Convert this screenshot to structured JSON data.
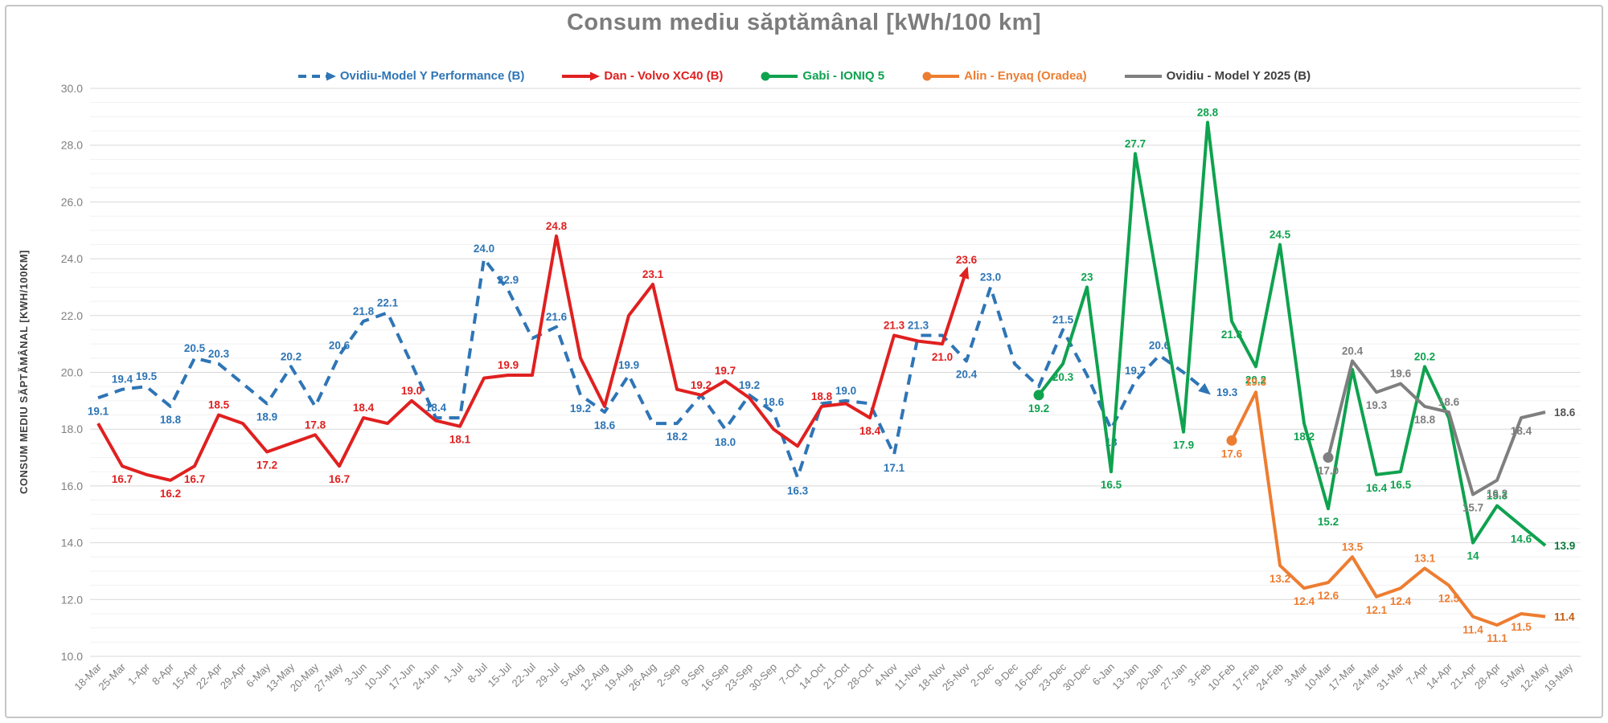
{
  "frame": {
    "border_color": "#C6C6C6",
    "background": "#FFFFFF"
  },
  "chart_data": {
    "type": "line",
    "title": "Consum mediu săptămânal [kWh/100 km]",
    "legend_position": "top",
    "grid": {
      "major": true,
      "minor": true
    },
    "colors": {
      "title": "#7C7C7C",
      "grid_major": "#D8D8D8",
      "grid_minor": "#F1F1F1",
      "tick_label": "#7F7F7F",
      "axis_title": "#3F3F3F"
    },
    "y_axis": {
      "title": "CONSUM MEDIU SĂPTĂMÂNAL [KWH/100KM]",
      "min": 10,
      "max": 30,
      "major_step": 2,
      "minor_step": 0.5,
      "tick_labels": [
        "10.0",
        "12.0",
        "14.0",
        "16.0",
        "18.0",
        "20.0",
        "22.0",
        "24.0",
        "26.0",
        "28.0",
        "30.0"
      ]
    },
    "x_axis": {
      "categories": [
        "18-Mar",
        "25-Mar",
        "1-Apr",
        "8-Apr",
        "15-Apr",
        "22-Apr",
        "29-Apr",
        "6-May",
        "13-May",
        "20-May",
        "27-May",
        "3-Jun",
        "10-Jun",
        "17-Jun",
        "24-Jun",
        "1-Jul",
        "8-Jul",
        "15-Jul",
        "22-Jul",
        "29-Jul",
        "5-Aug",
        "12-Aug",
        "19-Aug",
        "26-Aug",
        "2-Sep",
        "9-Sep",
        "16-Sep",
        "23-Sep",
        "30-Sep",
        "7-Oct",
        "14-Oct",
        "21-Oct",
        "28-Oct",
        "4-Nov",
        "11-Nov",
        "18-Nov",
        "25-Nov",
        "2-Dec",
        "9-Dec",
        "16-Dec",
        "23-Dec",
        "30-Dec",
        "6-Jan",
        "13-Jan",
        "20-Jan",
        "27-Jan",
        "3-Feb",
        "10-Feb",
        "17-Feb",
        "24-Feb",
        "3-Mar",
        "10-Mar",
        "17-Mar",
        "24-Mar",
        "31-Mar",
        "7-Apr",
        "14-Apr",
        "21-Apr",
        "28-Apr",
        "5-May",
        "12-May",
        "19-May"
      ]
    },
    "series": [
      {
        "name": "Ovidiu-Model Y Performance (B)",
        "color": "#2E75B6",
        "line_style": "dashed",
        "start_index": 0,
        "end_marker": "arrow",
        "legend_icon": "dashed-line-arrow-icon",
        "values": [
          19.1,
          19.4,
          19.5,
          18.8,
          20.5,
          20.3,
          19.6,
          18.9,
          20.2,
          18.8,
          20.6,
          21.8,
          22.1,
          20.3,
          18.4,
          18.4,
          24.0,
          22.9,
          21.2,
          21.6,
          19.2,
          18.6,
          19.9,
          18.2,
          18.2,
          19.2,
          18.0,
          19.2,
          18.6,
          16.3,
          18.9,
          19.0,
          18.9,
          17.1,
          21.3,
          21.3,
          20.4,
          23.0,
          20.3,
          19.5,
          21.5,
          19.9,
          18.0,
          19.7,
          20.6,
          20.0,
          19.3
        ],
        "labels": [
          "19.1",
          "19.4",
          "19.5",
          "18.8",
          "20.5",
          "20.3",
          null,
          "18.9",
          "20.2",
          null,
          "20.6",
          "21.8",
          "22.1",
          null,
          "18.4",
          null,
          "24.0",
          "22.9",
          null,
          "21.6",
          "19.2",
          "18.6",
          "19.9",
          null,
          "18.2",
          null,
          "18.0",
          "19.2",
          "18.6",
          "16.3",
          null,
          "19.0",
          null,
          "17.1",
          "21.3",
          null,
          "20.4",
          "23.0",
          null,
          null,
          "21.5",
          null,
          "18",
          "19.7",
          "20.6",
          null,
          "19.3"
        ],
        "label_overrides": {
          "14": "above",
          "46": "right"
        }
      },
      {
        "name": "Dan - Volvo XC40 (B)",
        "color": "#E02020",
        "line_style": "solid",
        "start_index": 0,
        "end_marker": "arrow",
        "legend_icon": "line-arrow-icon",
        "values": [
          18.2,
          16.7,
          16.4,
          16.2,
          16.7,
          18.5,
          18.2,
          17.2,
          17.5,
          17.8,
          16.7,
          18.4,
          18.2,
          19.0,
          18.3,
          18.1,
          19.8,
          19.9,
          19.9,
          24.8,
          20.5,
          18.8,
          22.0,
          23.1,
          19.4,
          19.2,
          19.7,
          19.1,
          18.0,
          17.4,
          18.8,
          18.9,
          18.4,
          21.3,
          21.1,
          21.0,
          23.6
        ],
        "labels": [
          null,
          "16.7",
          null,
          "16.2",
          "16.7",
          "18.5",
          null,
          "17.2",
          null,
          "17.8",
          "16.7",
          "18.4",
          null,
          "19.0",
          null,
          "18.1",
          null,
          "19.9",
          null,
          "24.8",
          null,
          null,
          null,
          "23.1",
          null,
          "19.2",
          "19.7",
          null,
          null,
          null,
          "18.8",
          null,
          "18.4",
          "21.3",
          null,
          "21.0",
          "23.6"
        ],
        "label_overrides": {
          "25": "above",
          "36": "above"
        }
      },
      {
        "name": "Gabi - IONIQ 5",
        "color": "#0FA24F",
        "line_style": "solid",
        "start_index": 39,
        "start_marker": "circle",
        "legend_icon": "line-dot-icon",
        "last_label_bold": true,
        "bold_label_color": "#0B7A3A",
        "values": [
          19.2,
          20.3,
          23.0,
          16.5,
          27.7,
          22.8,
          17.9,
          28.8,
          21.8,
          20.2,
          24.5,
          18.2,
          15.2,
          20.1,
          16.4,
          16.5,
          20.2,
          18.4,
          14.0,
          15.3,
          14.6,
          13.9
        ],
        "labels": [
          "19.2",
          "20.3",
          "23",
          "16.5",
          "27.7",
          null,
          "17.9",
          "28.8",
          "21.8",
          "20.2",
          "24.5",
          "18.2",
          "15.2",
          null,
          "16.4",
          "16.5",
          "20.2",
          null,
          "14",
          "15.3",
          "14.6",
          "13.9"
        ],
        "label_overrides": {
          "21": "right"
        }
      },
      {
        "name": "Alin - Enyaq (Oradea)",
        "color": "#ED7D31",
        "line_style": "solid",
        "start_index": 47,
        "start_marker": "circle",
        "legend_icon": "line-dot-icon",
        "last_label_bold": true,
        "bold_label_color": "#C55A11",
        "values": [
          17.6,
          19.3,
          13.2,
          12.4,
          12.6,
          13.5,
          12.1,
          12.4,
          13.1,
          12.5,
          11.4,
          11.1,
          11.5,
          11.4
        ],
        "labels": [
          "17.6",
          "19.3",
          "13.2",
          "12.4",
          "12.6",
          "13.5",
          "12.1",
          "12.4",
          "13.1",
          "12.5",
          "11.4",
          "11.1",
          "11.5",
          "11.4"
        ],
        "label_overrides": {
          "9": "below",
          "12": "below",
          "13": "right"
        }
      },
      {
        "name": "Ovidiu - Model Y 2025 (B)",
        "color": "#7F7F7F",
        "legend_text_color": "#404040",
        "line_style": "solid",
        "start_index": 51,
        "start_marker": "circle",
        "legend_icon": "line-icon",
        "last_label_bold": true,
        "bold_label_color": "#555555",
        "values": [
          17.0,
          20.4,
          19.3,
          19.6,
          18.8,
          18.6,
          15.7,
          16.2,
          18.4,
          18.6
        ],
        "labels": [
          "17.0",
          "20.4",
          "19.3",
          "19.6",
          "18.8",
          "18.6",
          "15.7",
          "16.2",
          "18.4",
          "18.6"
        ],
        "label_overrides": {
          "8": "below",
          "9": "right"
        }
      }
    ]
  }
}
